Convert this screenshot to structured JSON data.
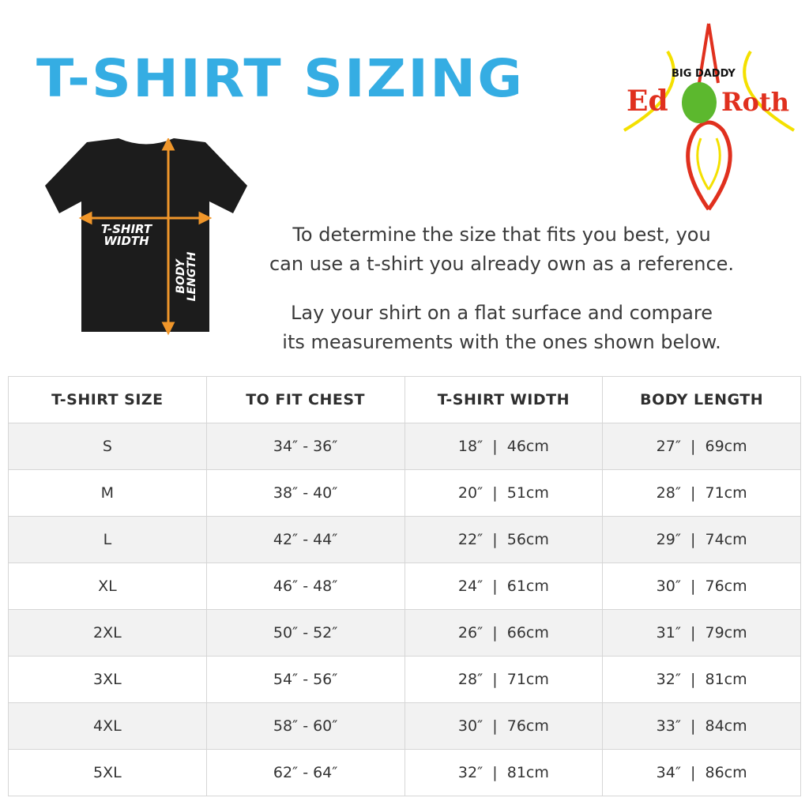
{
  "title": "T-SHIRT SIZING",
  "logo": {
    "text": "Ed BIG DADDY Roth",
    "colors": {
      "red": "#e0301e",
      "yellow": "#f4e000",
      "green": "#5cb82e"
    }
  },
  "diagram": {
    "width_label": [
      "T-SHIRT",
      "WIDTH"
    ],
    "length_label": [
      "BODY",
      "LENGTH"
    ],
    "arrow_color": "#f0962a",
    "shirt_color": "#1c1c1c"
  },
  "intro": {
    "line1": "To determine the size that fits you best, you",
    "line2": "can use a t-shirt you already own as a reference.",
    "line3": "Lay your shirt on a flat surface and compare",
    "line4": "its measurements with the ones shown below."
  },
  "table": {
    "headers": [
      "T-SHIRT SIZE",
      "TO FIT CHEST",
      "T-SHIRT WIDTH",
      "BODY LENGTH"
    ],
    "rows": [
      [
        "S",
        "34″ - 36″",
        "18″  |  46cm",
        "27″  |  69cm"
      ],
      [
        "M",
        "38″ - 40″",
        "20″  |  51cm",
        "28″  |  71cm"
      ],
      [
        "L",
        "42″ - 44″",
        "22″  |  56cm",
        "29″  |  74cm"
      ],
      [
        "XL",
        "46″ - 48″",
        "24″  |  61cm",
        "30″  |  76cm"
      ],
      [
        "2XL",
        "50″ - 52″",
        "26″  |  66cm",
        "31″  |  79cm"
      ],
      [
        "3XL",
        "54″ - 56″",
        "28″  |  71cm",
        "32″  |  81cm"
      ],
      [
        "4XL",
        "58″ - 60″",
        "30″  |  76cm",
        "33″  |  84cm"
      ],
      [
        "5XL",
        "62″ - 64″",
        "32″  |  81cm",
        "34″  |  86cm"
      ]
    ]
  }
}
